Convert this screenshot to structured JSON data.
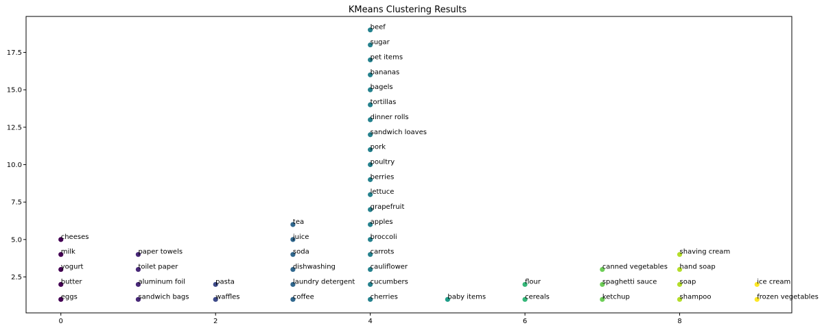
{
  "chart_data": {
    "type": "scatter",
    "title": "KMeans Clustering Results",
    "xlabel": "",
    "ylabel": "",
    "xlim": [
      -0.45,
      9.45
    ],
    "ylim": [
      0.1,
      19.9
    ],
    "x_ticks": [
      0,
      2,
      4,
      6,
      8
    ],
    "y_ticks": [
      2.5,
      5.0,
      7.5,
      10.0,
      12.5,
      15.0,
      17.5
    ],
    "grid": false,
    "colormap": "viridis",
    "axis_color": "#000000",
    "points": [
      {
        "x": 0,
        "y": 1,
        "label": "eggs",
        "cluster": 0,
        "color": "#440154"
      },
      {
        "x": 0,
        "y": 2,
        "label": "butter",
        "cluster": 0,
        "color": "#440154"
      },
      {
        "x": 0,
        "y": 3,
        "label": "yogurt",
        "cluster": 0,
        "color": "#440154"
      },
      {
        "x": 0,
        "y": 4,
        "label": "milk",
        "cluster": 0,
        "color": "#440154"
      },
      {
        "x": 0,
        "y": 5,
        "label": "cheeses",
        "cluster": 0,
        "color": "#440154"
      },
      {
        "x": 1,
        "y": 1,
        "label": "sandwich bags",
        "cluster": 1,
        "color": "#482878"
      },
      {
        "x": 1,
        "y": 2,
        "label": "aluminum foil",
        "cluster": 1,
        "color": "#482878"
      },
      {
        "x": 1,
        "y": 3,
        "label": "toilet paper",
        "cluster": 1,
        "color": "#482878"
      },
      {
        "x": 1,
        "y": 4,
        "label": "paper towels",
        "cluster": 1,
        "color": "#482878"
      },
      {
        "x": 2,
        "y": 1,
        "label": "waffles",
        "cluster": 2,
        "color": "#3e4a89"
      },
      {
        "x": 2,
        "y": 2,
        "label": "pasta",
        "cluster": 2,
        "color": "#3e4a89"
      },
      {
        "x": 3,
        "y": 1,
        "label": "coffee",
        "cluster": 3,
        "color": "#31688e"
      },
      {
        "x": 3,
        "y": 2,
        "label": "laundry detergent",
        "cluster": 3,
        "color": "#31688e"
      },
      {
        "x": 3,
        "y": 3,
        "label": "dishwashing",
        "cluster": 3,
        "color": "#31688e"
      },
      {
        "x": 3,
        "y": 4,
        "label": "soda",
        "cluster": 3,
        "color": "#31688e"
      },
      {
        "x": 3,
        "y": 5,
        "label": "juice",
        "cluster": 3,
        "color": "#31688e"
      },
      {
        "x": 3,
        "y": 6,
        "label": "tea",
        "cluster": 3,
        "color": "#31688e"
      },
      {
        "x": 4,
        "y": 1,
        "label": "cherries",
        "cluster": 4,
        "color": "#26828e"
      },
      {
        "x": 4,
        "y": 2,
        "label": "cucumbers",
        "cluster": 4,
        "color": "#26828e"
      },
      {
        "x": 4,
        "y": 3,
        "label": "cauliflower",
        "cluster": 4,
        "color": "#26828e"
      },
      {
        "x": 4,
        "y": 4,
        "label": "carrots",
        "cluster": 4,
        "color": "#26828e"
      },
      {
        "x": 4,
        "y": 5,
        "label": "broccoli",
        "cluster": 4,
        "color": "#26828e"
      },
      {
        "x": 4,
        "y": 6,
        "label": "apples",
        "cluster": 4,
        "color": "#26828e"
      },
      {
        "x": 4,
        "y": 7,
        "label": "grapefruit",
        "cluster": 4,
        "color": "#26828e"
      },
      {
        "x": 4,
        "y": 8,
        "label": "lettuce",
        "cluster": 4,
        "color": "#26828e"
      },
      {
        "x": 4,
        "y": 9,
        "label": "berries",
        "cluster": 4,
        "color": "#26828e"
      },
      {
        "x": 4,
        "y": 10,
        "label": "poultry",
        "cluster": 4,
        "color": "#26828e"
      },
      {
        "x": 4,
        "y": 11,
        "label": "pork",
        "cluster": 4,
        "color": "#26828e"
      },
      {
        "x": 4,
        "y": 12,
        "label": "sandwich loaves",
        "cluster": 4,
        "color": "#26828e"
      },
      {
        "x": 4,
        "y": 13,
        "label": "dinner rolls",
        "cluster": 4,
        "color": "#26828e"
      },
      {
        "x": 4,
        "y": 14,
        "label": "tortillas",
        "cluster": 4,
        "color": "#26828e"
      },
      {
        "x": 4,
        "y": 15,
        "label": "bagels",
        "cluster": 4,
        "color": "#26828e"
      },
      {
        "x": 4,
        "y": 16,
        "label": "bananas",
        "cluster": 4,
        "color": "#26828e"
      },
      {
        "x": 4,
        "y": 17,
        "label": "pet items",
        "cluster": 4,
        "color": "#26828e"
      },
      {
        "x": 4,
        "y": 18,
        "label": "sugar",
        "cluster": 4,
        "color": "#26828e"
      },
      {
        "x": 4,
        "y": 19,
        "label": "beef",
        "cluster": 4,
        "color": "#26828e"
      },
      {
        "x": 5,
        "y": 1,
        "label": "baby items",
        "cluster": 5,
        "color": "#1f9e89"
      },
      {
        "x": 6,
        "y": 1,
        "label": "cereals",
        "cluster": 6,
        "color": "#35b779"
      },
      {
        "x": 6,
        "y": 2,
        "label": "flour",
        "cluster": 6,
        "color": "#35b779"
      },
      {
        "x": 7,
        "y": 1,
        "label": "ketchup",
        "cluster": 7,
        "color": "#6ece58"
      },
      {
        "x": 7,
        "y": 2,
        "label": "spaghetti sauce",
        "cluster": 7,
        "color": "#6ece58"
      },
      {
        "x": 7,
        "y": 3,
        "label": "canned vegetables",
        "cluster": 7,
        "color": "#6ece58"
      },
      {
        "x": 8,
        "y": 1,
        "label": "shampoo",
        "cluster": 8,
        "color": "#b5de2b"
      },
      {
        "x": 8,
        "y": 2,
        "label": "soap",
        "cluster": 8,
        "color": "#b5de2b"
      },
      {
        "x": 8,
        "y": 3,
        "label": "hand soap",
        "cluster": 8,
        "color": "#b5de2b"
      },
      {
        "x": 8,
        "y": 4,
        "label": "shaving cream",
        "cluster": 8,
        "color": "#b5de2b"
      },
      {
        "x": 9,
        "y": 1,
        "label": "frozen vegetables",
        "cluster": 9,
        "color": "#fde725"
      },
      {
        "x": 9,
        "y": 2,
        "label": "ice cream",
        "cluster": 9,
        "color": "#fde725"
      }
    ]
  }
}
